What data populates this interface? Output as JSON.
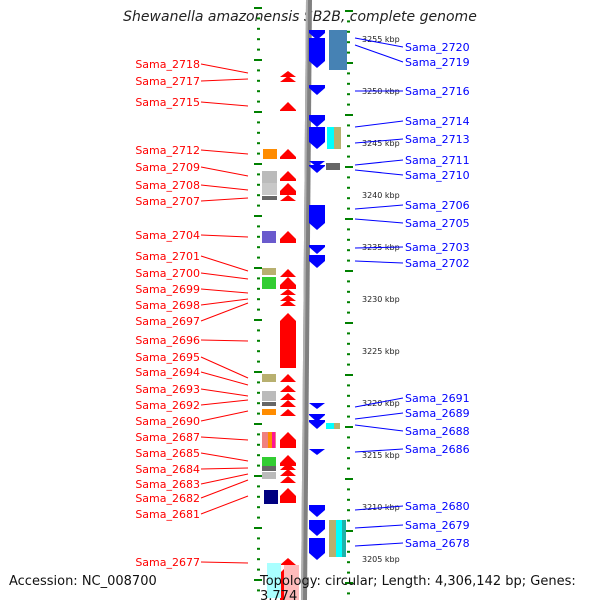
{
  "title": "Shewanella amazonensis SB2B, complete genome",
  "accession": "Accession: NC_008700",
  "topology": "Topology: circular; Length: 4,306,142 bp; Genes: 3,774",
  "left_genes": [
    "Sama_2718",
    "Sama_2717",
    "Sama_2715",
    "Sama_2712",
    "Sama_2709",
    "Sama_2708",
    "Sama_2707",
    "Sama_2704",
    "Sama_2701",
    "Sama_2700",
    "Sama_2699",
    "Sama_2698",
    "Sama_2697",
    "Sama_2696",
    "Sama_2695",
    "Sama_2694",
    "Sama_2693",
    "Sama_2692",
    "Sama_2690",
    "Sama_2687",
    "Sama_2685",
    "Sama_2684",
    "Sama_2683",
    "Sama_2682",
    "Sama_2681",
    "Sama_2677"
  ],
  "right_genes": [
    "Sama_2720",
    "Sama_2719",
    "Sama_2716",
    "Sama_2714",
    "Sama_2713",
    "Sama_2711",
    "Sama_2710",
    "Sama_2706",
    "Sama_2705",
    "Sama_2703",
    "Sama_2702",
    "Sama_2691",
    "Sama_2689",
    "Sama_2688",
    "Sama_2686",
    "Sama_2680",
    "Sama_2679",
    "Sama_2678"
  ],
  "scale": [
    "3255 kbp",
    "3250 kbp",
    "3245 kbp",
    "3240 kbp",
    "3235 kbp",
    "3230 kbp",
    "3225 kbp",
    "3220 kbp",
    "3215 kbp",
    "3210 kbp",
    "3205 kbp"
  ],
  "colors": {
    "forward": "#ff0000",
    "reverse": "#0000ff",
    "ticks": "#008000",
    "backbone": "#808080"
  }
}
